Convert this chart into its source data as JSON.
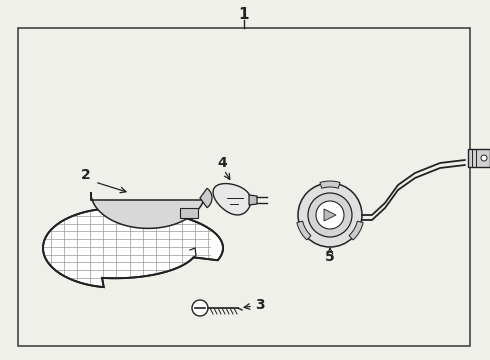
{
  "bg": "#f0f0eb",
  "lc": "#222222",
  "border": "#444444",
  "figsize": [
    4.9,
    3.6
  ],
  "dpi": 100
}
